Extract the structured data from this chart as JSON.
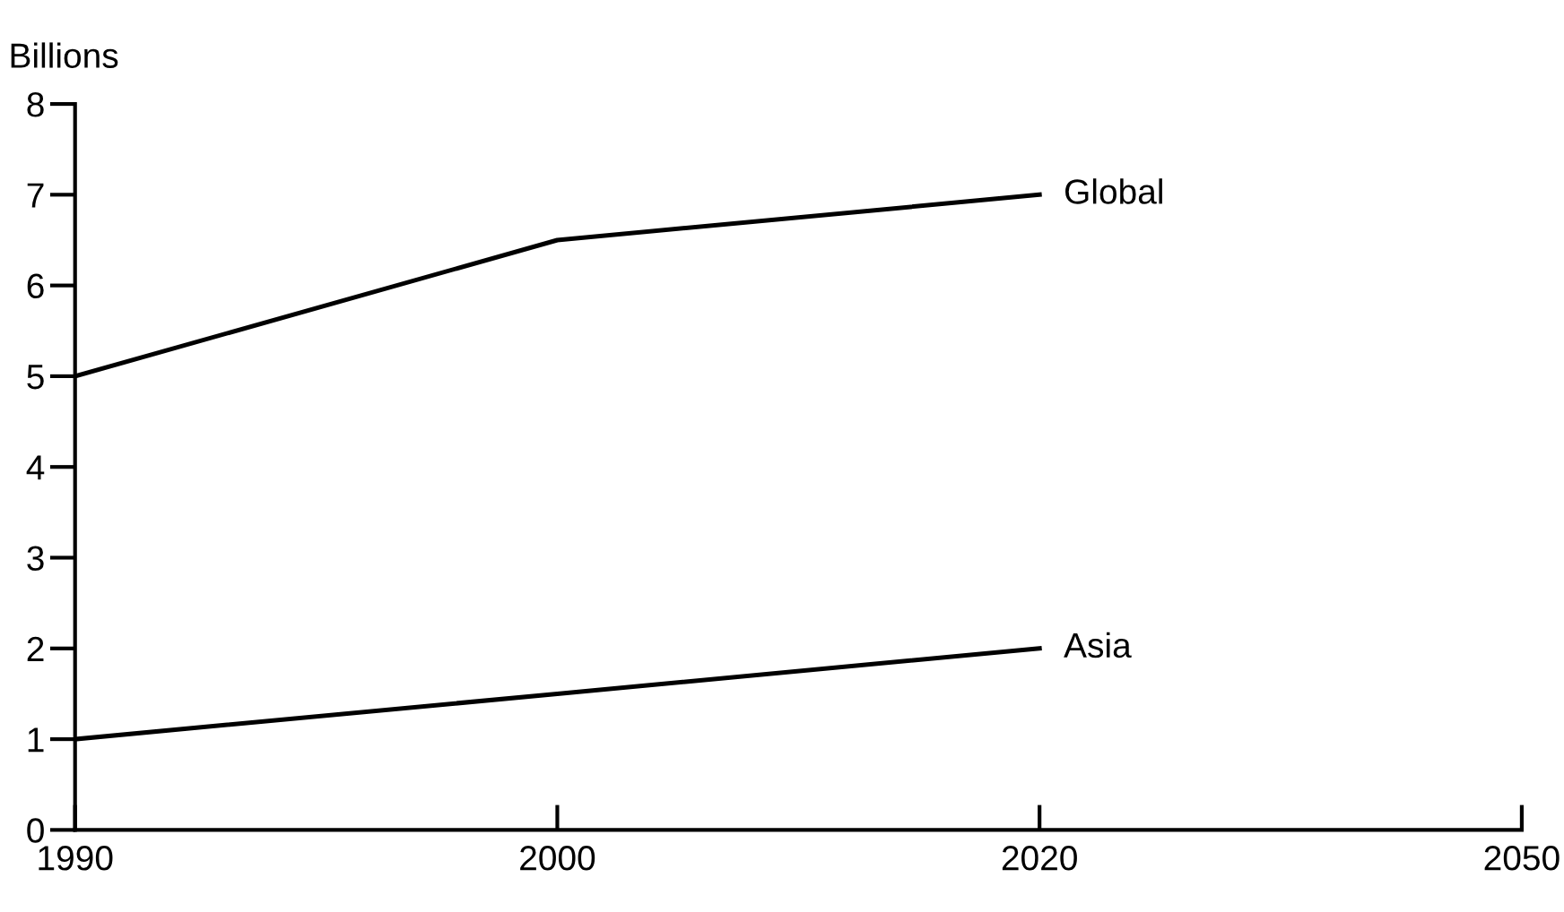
{
  "chart_data": {
    "type": "line",
    "ylabel": "Billions",
    "categories": [
      "1990",
      "2000",
      "2020",
      "2050"
    ],
    "series": [
      {
        "name": "Global",
        "color": "#000000",
        "values": [
          5,
          6.5,
          7,
          null
        ]
      },
      {
        "name": "Asia",
        "color": "#000000",
        "values": [
          1,
          1.5,
          2,
          null
        ]
      }
    ],
    "ylim": [
      0,
      8
    ],
    "yticks": [
      0,
      1,
      2,
      3,
      4,
      5,
      6,
      7,
      8
    ],
    "grid": false,
    "legend": false,
    "marker": "none",
    "line_style": "solid"
  }
}
